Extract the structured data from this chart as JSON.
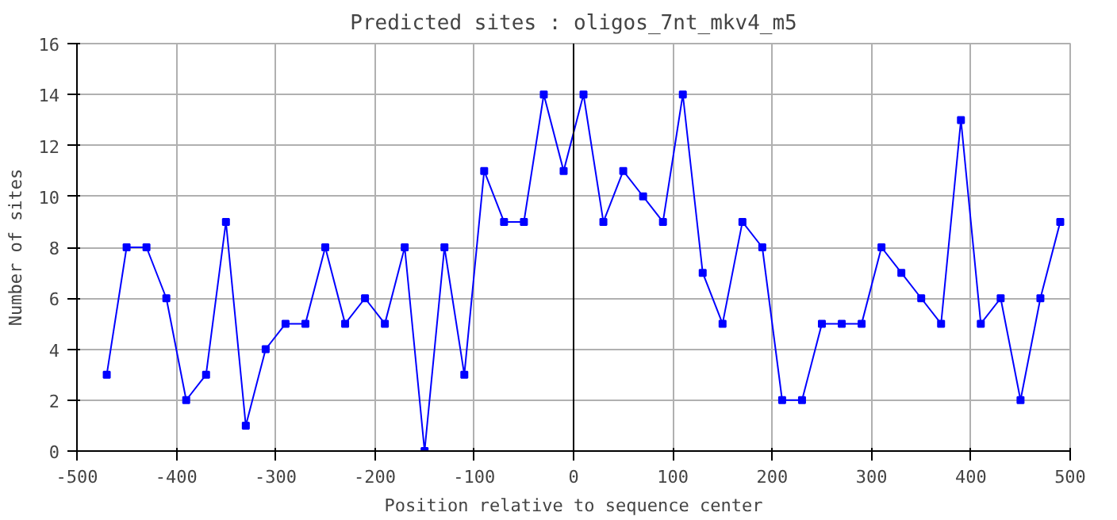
{
  "chart_data": {
    "type": "line",
    "title": "Predicted sites : oligos_7nt_mkv4_m5",
    "xlabel": "Position relative to sequence center",
    "ylabel": "Number of sites",
    "x": [
      -470,
      -450,
      -430,
      -410,
      -390,
      -370,
      -350,
      -330,
      -310,
      -290,
      -270,
      -250,
      -230,
      -210,
      -190,
      -170,
      -150,
      -130,
      -110,
      -90,
      -70,
      -50,
      -30,
      -10,
      10,
      30,
      50,
      70,
      90,
      110,
      130,
      150,
      170,
      190,
      210,
      230,
      250,
      270,
      290,
      310,
      330,
      350,
      370,
      390,
      410,
      430,
      450,
      470,
      490
    ],
    "series": [
      {
        "color": "#0000ff",
        "values": [
          3,
          8,
          8,
          6,
          2,
          3,
          9,
          1,
          4,
          5,
          5,
          8,
          5,
          6,
          5,
          8,
          0,
          8,
          3,
          11,
          9,
          9,
          14,
          11,
          14,
          9,
          11,
          10,
          9,
          14,
          7,
          5,
          9,
          8,
          2,
          2,
          5,
          5,
          5,
          8,
          7,
          6,
          5,
          13,
          5,
          6,
          2,
          6,
          9
        ]
      }
    ],
    "xlim": [
      -500,
      500
    ],
    "ylim": [
      0,
      16
    ],
    "xticks": [
      -500,
      -400,
      -300,
      -200,
      -100,
      0,
      100,
      200,
      300,
      400,
      500
    ],
    "yticks": [
      0,
      2,
      4,
      6,
      8,
      10,
      12,
      14,
      16
    ],
    "ref_lines": [
      {
        "axis": "x",
        "value": 0,
        "color": "#000000"
      }
    ],
    "grid": true,
    "marker": "square",
    "line_style": "solid"
  }
}
